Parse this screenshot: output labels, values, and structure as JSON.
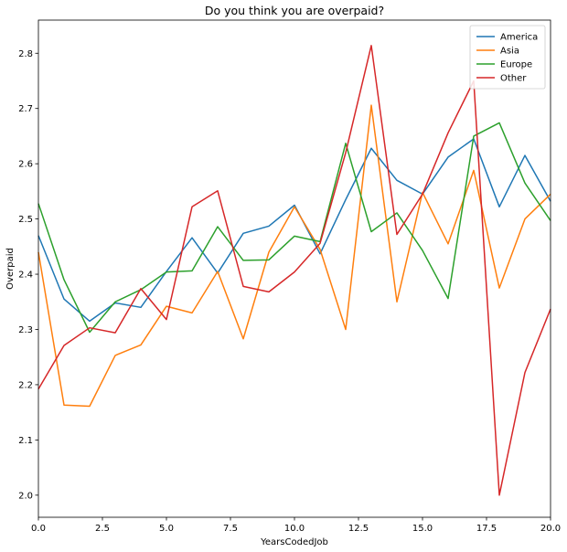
{
  "chart_data": {
    "type": "line",
    "title": "Do you think you are overpaid?",
    "xlabel": "YearsCodedJob",
    "ylabel": "Overpaid",
    "xlim": [
      0,
      20
    ],
    "ylim": [
      1.96,
      2.86
    ],
    "xticks": [
      0,
      2.5,
      5,
      7.5,
      10,
      12.5,
      15,
      17.5,
      20
    ],
    "xtick_labels": [
      "0.0",
      "2.5",
      "5.0",
      "7.5",
      "10.0",
      "12.5",
      "15.0",
      "17.5",
      "20.0"
    ],
    "yticks": [
      2.0,
      2.1,
      2.2,
      2.3,
      2.4,
      2.5,
      2.6,
      2.7,
      2.8
    ],
    "ytick_labels": [
      "2.0",
      "2.1",
      "2.2",
      "2.3",
      "2.4",
      "2.5",
      "2.6",
      "2.7",
      "2.8"
    ],
    "grid": false,
    "legend_position": "top-right",
    "x": [
      0,
      1,
      2,
      3,
      4,
      5,
      6,
      7,
      8,
      9,
      10,
      11,
      12,
      13,
      14,
      15,
      16,
      17,
      18,
      19,
      20
    ],
    "series": [
      {
        "name": "America",
        "color": "#1f77b4",
        "values": [
          2.47,
          2.355,
          2.315,
          2.348,
          2.34,
          2.405,
          2.466,
          2.402,
          2.474,
          2.487,
          2.525,
          2.437,
          2.535,
          2.628,
          2.57,
          2.545,
          2.612,
          2.645,
          2.522,
          2.615,
          2.532
        ]
      },
      {
        "name": "Asia",
        "color": "#ff7f0e",
        "values": [
          2.44,
          2.163,
          2.161,
          2.253,
          2.272,
          2.342,
          2.33,
          2.405,
          2.283,
          2.44,
          2.522,
          2.445,
          2.3,
          2.706,
          2.35,
          2.548,
          2.455,
          2.588,
          2.375,
          2.5,
          2.545
        ]
      },
      {
        "name": "Europe",
        "color": "#2ca02c",
        "values": [
          2.528,
          2.39,
          2.295,
          2.35,
          2.372,
          2.404,
          2.406,
          2.486,
          2.425,
          2.426,
          2.469,
          2.459,
          2.637,
          2.477,
          2.511,
          2.443,
          2.356,
          2.65,
          2.674,
          2.565,
          2.497
        ]
      },
      {
        "name": "Other",
        "color": "#d62728",
        "values": [
          2.192,
          2.271,
          2.303,
          2.294,
          2.374,
          2.318,
          2.522,
          2.551,
          2.378,
          2.368,
          2.404,
          2.456,
          2.62,
          2.814,
          2.472,
          2.545,
          2.656,
          2.75,
          2.0,
          2.222,
          2.337
        ]
      }
    ]
  }
}
